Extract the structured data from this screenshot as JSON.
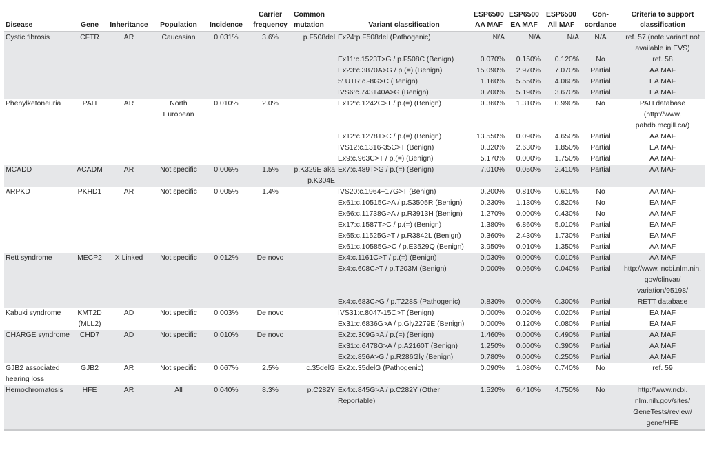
{
  "headers": {
    "disease": "Disease",
    "gene": "Gene",
    "inheritance": "Inheritance",
    "population": "Population",
    "incidence": "Incidence",
    "carrier": "Carrier frequency",
    "common": "Common mutation",
    "variant": "Variant classification",
    "aa": "ESP6500 AA MAF",
    "ea": "ESP6500 EA MAF",
    "all": "ESP6500 All MAF",
    "concordance": "Con-cordance",
    "criteria": "Criteria to support classification"
  },
  "rows_shading": {
    "gray": "#e6e7e9",
    "white": "#ffffff"
  },
  "diseases": [
    {
      "disease": "Cystic fibrosis",
      "gene": "CFTR",
      "inheritance": "AR",
      "population": "Caucasian",
      "incidence": "0.031%",
      "carrier": "3.6%",
      "common": "p.F508del",
      "variants": [
        {
          "variant": "Ex24:p.F508del (Pathogenic)",
          "aa": "N/A",
          "ea": "N/A",
          "all": "N/A",
          "concordance": "N/A",
          "criteria": "ref. 57 (note variant not available in EVS)"
        },
        {
          "variant": "Ex11:c.1523T>G / p.F508C (Benign)",
          "aa": "0.070%",
          "ea": "0.150%",
          "all": "0.120%",
          "concordance": "No",
          "criteria": "ref. 58"
        },
        {
          "variant": "Ex23:c.3870A>G / p.(=) (Benign)",
          "aa": "15.090%",
          "ea": "2.970%",
          "all": "7.070%",
          "concordance": "Partial",
          "criteria": "AA MAF"
        },
        {
          "variant": "5′ UTR:c.-8G>C (Benign)",
          "aa": "1.160%",
          "ea": "5.550%",
          "all": "4.060%",
          "concordance": "Partial",
          "criteria": "EA MAF"
        },
        {
          "variant": "IVS6:c.743+40A>G (Benign)",
          "aa": "0.700%",
          "ea": "5.190%",
          "all": "3.670%",
          "concordance": "Partial",
          "criteria": "EA MAF"
        }
      ]
    },
    {
      "disease": "Phenylketoneuria",
      "gene": "PAH",
      "inheritance": "AR",
      "population": "North European",
      "incidence": "0.010%",
      "carrier": "2.0%",
      "common": "",
      "variants": [
        {
          "variant": "Ex12:c.1242C>T / p.(=) (Benign)",
          "aa": "0.360%",
          "ea": "1.310%",
          "all": "0.990%",
          "concordance": "No",
          "criteria": "PAH database (http://www. pahdb.mcgill.ca/)"
        },
        {
          "variant": "Ex12:c.1278T>C / p.(=) (Benign)",
          "aa": "13.550%",
          "ea": "0.090%",
          "all": "4.650%",
          "concordance": "Partial",
          "criteria": "AA MAF"
        },
        {
          "variant": "IVS12:c.1316-35C>T (Benign)",
          "aa": "0.320%",
          "ea": "2.630%",
          "all": "1.850%",
          "concordance": "Partial",
          "criteria": "EA MAF"
        },
        {
          "variant": "Ex9:c.963C>T / p.(=) (Benign)",
          "aa": "5.170%",
          "ea": "0.000%",
          "all": "1.750%",
          "concordance": "Partial",
          "criteria": "AA MAF"
        }
      ]
    },
    {
      "disease": "MCADD",
      "gene": "ACADM",
      "inheritance": "AR",
      "population": "Not specific",
      "incidence": "0.006%",
      "carrier": "1.5%",
      "common": "p.K329E aka p.K304E",
      "variants": [
        {
          "variant": "Ex7:c.489T>G / p.(=) (Benign)",
          "aa": "7.010%",
          "ea": "0.050%",
          "all": "2.410%",
          "concordance": "Partial",
          "criteria": "AA MAF"
        }
      ]
    },
    {
      "disease": "ARPKD",
      "gene": "PKHD1",
      "inheritance": "AR",
      "population": "Not specific",
      "incidence": "0.005%",
      "carrier": "1.4%",
      "common": "",
      "variants": [
        {
          "variant": "IVS20:c.1964+17G>T (Benign)",
          "aa": "0.200%",
          "ea": "0.810%",
          "all": "0.610%",
          "concordance": "No",
          "criteria": "AA MAF"
        },
        {
          "variant": "Ex61:c.10515C>A / p.S3505R (Benign)",
          "aa": "0.230%",
          "ea": "1.130%",
          "all": "0.820%",
          "concordance": "No",
          "criteria": "EA MAF"
        },
        {
          "variant": "Ex66:c.11738G>A / p.R3913H (Benign)",
          "aa": "1.270%",
          "ea": "0.000%",
          "all": "0.430%",
          "concordance": "No",
          "criteria": "AA MAF"
        },
        {
          "variant": "Ex17:c.1587T>C / p.(=) (Benign)",
          "aa": "1.380%",
          "ea": "6.860%",
          "all": "5.010%",
          "concordance": "Partial",
          "criteria": "EA MAF"
        },
        {
          "variant": "Ex65:c.11525G>T / p.R3842L (Benign)",
          "aa": "0.360%",
          "ea": "2.430%",
          "all": "1.730%",
          "concordance": "Partial",
          "criteria": "EA MAF"
        },
        {
          "variant": "Ex61:c.10585G>C / p.E3529Q (Benign)",
          "aa": "3.950%",
          "ea": "0.010%",
          "all": "1.350%",
          "concordance": "Partial",
          "criteria": "AA MAF"
        }
      ]
    },
    {
      "disease": "Rett syndrome",
      "gene": "MECP2",
      "inheritance": "X Linked",
      "population": "Not specific",
      "incidence": "0.012%",
      "carrier": "De novo",
      "common": "",
      "variants": [
        {
          "variant": "Ex4:c.1161C>T / p.(=) (Benign)",
          "aa": "0.030%",
          "ea": "0.000%",
          "all": "0.010%",
          "concordance": "Partial",
          "criteria": "AA MAF"
        },
        {
          "variant": "Ex4:c.608C>T / p.T203M (Benign)",
          "aa": "0.000%",
          "ea": "0.060%",
          "all": "0.040%",
          "concordance": "Partial",
          "criteria": "http://www. ncbi.nlm.nih. gov/clinvar/ variation/95198/"
        },
        {
          "variant": "Ex4:c.683C>G / p.T228S (Pathogenic)",
          "aa": "0.830%",
          "ea": "0.000%",
          "all": "0.300%",
          "concordance": "Partial",
          "criteria": "RETT database"
        }
      ]
    },
    {
      "disease": "Kabuki syndrome",
      "gene": "KMT2D (MLL2)",
      "inheritance": "AD",
      "population": "Not specific",
      "incidence": "0.003%",
      "carrier": "De novo",
      "common": "",
      "variants": [
        {
          "variant": "IVS31:c.8047-15C>T (Benign)",
          "aa": "0.000%",
          "ea": "0.020%",
          "all": "0.020%",
          "concordance": "Partial",
          "criteria": "EA MAF"
        },
        {
          "variant": "Ex31:c.6836G>A / p.Gly2279E (Benign)",
          "aa": "0.000%",
          "ea": "0.120%",
          "all": "0.080%",
          "concordance": "Partial",
          "criteria": "EA MAF"
        }
      ]
    },
    {
      "disease": "CHARGE syndrome",
      "gene": "CHD7",
      "inheritance": "AD",
      "population": "Not specific",
      "incidence": "0.010%",
      "carrier": "De novo",
      "common": "",
      "variants": [
        {
          "variant": "Ex2:c.309G>A / p.(=) (Benign)",
          "aa": "1.460%",
          "ea": "0.000%",
          "all": "0.490%",
          "concordance": "Partial",
          "criteria": "AA MAF"
        },
        {
          "variant": "Ex31:c.6478G>A / p.A2160T (Benign)",
          "aa": "1.250%",
          "ea": "0.000%",
          "all": "0.390%",
          "concordance": "Partial",
          "criteria": "AA MAF"
        },
        {
          "variant": "Ex2:c.856A>G / p.R286Gly (Benign)",
          "aa": "0.780%",
          "ea": "0.000%",
          "all": "0.250%",
          "concordance": "Partial",
          "criteria": "AA MAF"
        }
      ]
    },
    {
      "disease": "GJB2 associated hearing loss",
      "gene": "GJB2",
      "inheritance": "AR",
      "population": "Not specific",
      "incidence": "0.067%",
      "carrier": "2.5%",
      "common": "c.35delG",
      "variants": [
        {
          "variant": "Ex2:c.35delG (Pathogenic)",
          "aa": "0.090%",
          "ea": "1.080%",
          "all": "0.740%",
          "concordance": "No",
          "criteria": "ref. 59"
        }
      ]
    },
    {
      "disease": "Hemochromatosis",
      "gene": "HFE",
      "inheritance": "AR",
      "population": "All",
      "incidence": "0.040%",
      "carrier": "8.3%",
      "common": "p.C282Y",
      "variants": [
        {
          "variant": "Ex4:c.845G>A / p.C282Y (Other Reportable)",
          "aa": "1.520%",
          "ea": "6.410%",
          "all": "4.750%",
          "concordance": "No",
          "criteria": "http://www.ncbi. nlm.nih.gov/sites/ GeneTests/review/ gene/HFE"
        }
      ]
    }
  ]
}
